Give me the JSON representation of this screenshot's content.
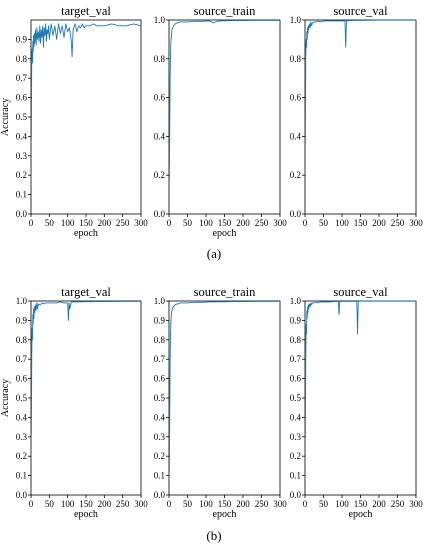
{
  "figure": {
    "rows": [
      {
        "caption": "(a)",
        "plots": [
          {
            "title": "target_val",
            "chart_data": {
              "type": "line",
              "title": "target_val",
              "xlabel": "epoch",
              "ylabel": "Accuracy",
              "xlim": [
                0,
                300
              ],
              "ylim": [
                0.0,
                1.0
              ],
              "xticks": [
                0,
                50,
                100,
                150,
                200,
                250,
                300
              ],
              "yticks": [
                0.0,
                0.1,
                0.2,
                0.3,
                0.4,
                0.5,
                0.6,
                0.7,
                0.8,
                0.9
              ],
              "ytick_labels": [
                "0.0",
                "0.1",
                "0.2",
                "0.3",
                "0.4",
                "0.5",
                "0.6",
                "0.7",
                "0.8",
                "0.9"
              ],
              "series": [
                {
                  "color": "#1f77b4",
                  "x": [
                    1,
                    2,
                    3,
                    4,
                    5,
                    6,
                    7,
                    8,
                    9,
                    10,
                    12,
                    14,
                    16,
                    18,
                    20,
                    22,
                    24,
                    26,
                    28,
                    30,
                    32,
                    34,
                    36,
                    38,
                    40,
                    42,
                    44,
                    46,
                    48,
                    50,
                    55,
                    60,
                    65,
                    70,
                    75,
                    80,
                    85,
                    90,
                    95,
                    100,
                    105,
                    110,
                    112,
                    115,
                    120,
                    125,
                    130,
                    135,
                    140,
                    145,
                    150,
                    160,
                    170,
                    180,
                    200,
                    220,
                    240,
                    260,
                    280,
                    300
                  ],
                  "y": [
                    0.39,
                    0.8,
                    0.85,
                    0.78,
                    0.89,
                    0.84,
                    0.92,
                    0.86,
                    0.93,
                    0.88,
                    0.95,
                    0.87,
                    0.96,
                    0.9,
                    0.94,
                    0.89,
                    0.97,
                    0.88,
                    0.95,
                    0.91,
                    0.97,
                    0.86,
                    0.96,
                    0.92,
                    0.98,
                    0.89,
                    0.95,
                    0.93,
                    0.97,
                    0.9,
                    0.98,
                    0.92,
                    0.97,
                    0.9,
                    0.98,
                    0.93,
                    0.97,
                    0.91,
                    0.98,
                    0.94,
                    0.96,
                    0.89,
                    0.81,
                    0.95,
                    0.98,
                    0.94,
                    0.97,
                    0.96,
                    0.98,
                    0.96,
                    0.97,
                    0.97,
                    0.98,
                    0.97,
                    0.97,
                    0.98,
                    0.97,
                    0.97,
                    0.98,
                    0.97
                  ]
                }
              ]
            }
          },
          {
            "title": "source_train",
            "chart_data": {
              "type": "line",
              "title": "source_train",
              "xlabel": "epoch",
              "ylabel": "",
              "xlim": [
                0,
                300
              ],
              "ylim": [
                0.0,
                1.0
              ],
              "xticks": [
                0,
                50,
                100,
                150,
                200,
                250,
                300
              ],
              "yticks": [
                0.0,
                0.2,
                0.4,
                0.6,
                0.8,
                1.0
              ],
              "ytick_labels": [
                "0.0",
                "0.2",
                "0.4",
                "0.6",
                "0.8",
                "1.0"
              ],
              "series": [
                {
                  "color": "#1f77b4",
                  "x": [
                    1,
                    2,
                    3,
                    4,
                    5,
                    6,
                    7,
                    8,
                    10,
                    12,
                    14,
                    16,
                    18,
                    20,
                    25,
                    30,
                    35,
                    40,
                    50,
                    60,
                    70,
                    80,
                    90,
                    100,
                    110,
                    120,
                    130,
                    140,
                    150,
                    175,
                    200,
                    250,
                    300
                  ],
                  "y": [
                    0.17,
                    0.45,
                    0.7,
                    0.82,
                    0.88,
                    0.91,
                    0.93,
                    0.95,
                    0.96,
                    0.97,
                    0.975,
                    0.98,
                    0.98,
                    0.985,
                    0.985,
                    0.99,
                    0.99,
                    0.99,
                    0.99,
                    0.992,
                    0.993,
                    0.993,
                    0.993,
                    0.994,
                    0.995,
                    0.985,
                    0.993,
                    0.995,
                    0.996,
                    0.997,
                    0.997,
                    0.998,
                    0.998
                  ]
                }
              ]
            }
          },
          {
            "title": "source_val",
            "chart_data": {
              "type": "line",
              "title": "source_val",
              "xlabel": "",
              "ylabel": "",
              "xlim": [
                0,
                300
              ],
              "ylim": [
                0.0,
                1.0
              ],
              "xticks": [
                0,
                50,
                100,
                150,
                200,
                250,
                300
              ],
              "yticks": [
                0.0,
                0.2,
                0.4,
                0.6,
                0.8,
                1.0
              ],
              "ytick_labels": [
                "0.0",
                "0.2",
                "0.4",
                "0.6",
                "0.8",
                "1.0"
              ],
              "series": [
                {
                  "color": "#1f77b4",
                  "x": [
                    1,
                    2,
                    3,
                    4,
                    5,
                    6,
                    7,
                    8,
                    9,
                    10,
                    12,
                    14,
                    16,
                    18,
                    20,
                    25,
                    30,
                    35,
                    40,
                    50,
                    60,
                    70,
                    80,
                    90,
                    100,
                    108,
                    110,
                    112,
                    115,
                    120,
                    140,
                    160,
                    200,
                    250,
                    300
                  ],
                  "y": [
                    0.36,
                    0.8,
                    0.9,
                    0.86,
                    0.94,
                    0.9,
                    0.96,
                    0.93,
                    0.97,
                    0.95,
                    0.98,
                    0.96,
                    0.99,
                    0.97,
                    0.985,
                    0.99,
                    0.99,
                    0.995,
                    0.99,
                    0.995,
                    0.995,
                    0.995,
                    0.995,
                    0.995,
                    0.995,
                    0.995,
                    0.86,
                    0.995,
                    0.995,
                    0.997,
                    0.998,
                    0.998,
                    0.999,
                    0.999,
                    0.999
                  ]
                }
              ]
            }
          }
        ]
      },
      {
        "caption": "(b)",
        "plots": [
          {
            "title": "target_val",
            "chart_data": {
              "type": "line",
              "title": "target_val",
              "xlabel": "epoch",
              "ylabel": "Accuracy",
              "xlim": [
                0,
                300
              ],
              "ylim": [
                0.0,
                1.0
              ],
              "xticks": [
                0,
                50,
                100,
                150,
                200,
                250,
                300
              ],
              "yticks": [
                0.0,
                0.1,
                0.2,
                0.3,
                0.4,
                0.5,
                0.6,
                0.7,
                0.8,
                0.9,
                1.0
              ],
              "ytick_labels": [
                "0.0",
                "0.1",
                "0.2",
                "0.3",
                "0.4",
                "0.5",
                "0.6",
                "0.7",
                "0.8",
                "0.9",
                "1.0"
              ],
              "series": [
                {
                  "color": "#1f77b4",
                  "x": [
                    1,
                    2,
                    3,
                    4,
                    5,
                    6,
                    7,
                    8,
                    9,
                    10,
                    12,
                    14,
                    16,
                    18,
                    20,
                    25,
                    30,
                    35,
                    40,
                    50,
                    60,
                    70,
                    80,
                    90,
                    100,
                    102,
                    104,
                    106,
                    110,
                    120,
                    140,
                    160,
                    200,
                    250,
                    300
                  ],
                  "y": [
                    0.31,
                    0.7,
                    0.86,
                    0.8,
                    0.93,
                    0.88,
                    0.96,
                    0.91,
                    0.97,
                    0.94,
                    0.98,
                    0.95,
                    0.99,
                    0.96,
                    0.985,
                    0.98,
                    0.99,
                    0.985,
                    0.99,
                    0.99,
                    0.99,
                    0.99,
                    0.995,
                    0.99,
                    0.99,
                    0.9,
                    0.99,
                    0.96,
                    0.995,
                    0.995,
                    0.996,
                    0.997,
                    0.997,
                    0.998,
                    0.998
                  ]
                }
              ]
            }
          },
          {
            "title": "source_train",
            "chart_data": {
              "type": "line",
              "title": "source_train",
              "xlabel": "epoch",
              "ylabel": "",
              "xlim": [
                0,
                300
              ],
              "ylim": [
                0.0,
                1.0
              ],
              "xticks": [
                0,
                50,
                100,
                150,
                200,
                250,
                300
              ],
              "yticks": [
                0.0,
                0.1,
                0.2,
                0.3,
                0.4,
                0.5,
                0.6,
                0.7,
                0.8,
                0.9,
                1.0
              ],
              "ytick_labels": [
                "0.0",
                "0.1",
                "0.2",
                "0.3",
                "0.4",
                "0.5",
                "0.6",
                "0.7",
                "0.8",
                "0.9",
                "1.0"
              ],
              "series": [
                {
                  "color": "#1f77b4",
                  "x": [
                    1,
                    2,
                    3,
                    4,
                    5,
                    6,
                    7,
                    8,
                    10,
                    12,
                    14,
                    16,
                    18,
                    20,
                    25,
                    30,
                    35,
                    40,
                    50,
                    60,
                    70,
                    80,
                    90,
                    100,
                    110,
                    120,
                    130,
                    140,
                    150,
                    175,
                    200,
                    250,
                    300
                  ],
                  "y": [
                    0.12,
                    0.42,
                    0.68,
                    0.82,
                    0.89,
                    0.92,
                    0.94,
                    0.95,
                    0.965,
                    0.97,
                    0.975,
                    0.98,
                    0.98,
                    0.985,
                    0.985,
                    0.99,
                    0.99,
                    0.99,
                    0.99,
                    0.992,
                    0.993,
                    0.993,
                    0.993,
                    0.994,
                    0.995,
                    0.995,
                    0.996,
                    0.996,
                    0.996,
                    0.997,
                    0.997,
                    0.998,
                    0.998
                  ]
                }
              ]
            }
          },
          {
            "title": "source_val",
            "chart_data": {
              "type": "line",
              "title": "source_val",
              "xlabel": "epoch",
              "ylabel": "",
              "xlim": [
                0,
                300
              ],
              "ylim": [
                0.0,
                1.0
              ],
              "xticks": [
                0,
                50,
                100,
                150,
                200,
                250,
                300
              ],
              "yticks": [
                0.0,
                0.1,
                0.2,
                0.3,
                0.4,
                0.5,
                0.6,
                0.7,
                0.8,
                0.9,
                1.0
              ],
              "ytick_labels": [
                "0.0",
                "0.1",
                "0.2",
                "0.3",
                "0.4",
                "0.5",
                "0.6",
                "0.7",
                "0.8",
                "0.9",
                "1.0"
              ],
              "series": [
                {
                  "color": "#1f77b4",
                  "x": [
                    1,
                    2,
                    3,
                    4,
                    5,
                    6,
                    7,
                    8,
                    9,
                    10,
                    12,
                    14,
                    16,
                    18,
                    20,
                    25,
                    30,
                    35,
                    40,
                    50,
                    60,
                    70,
                    80,
                    90,
                    92,
                    94,
                    100,
                    120,
                    140,
                    142,
                    144,
                    150,
                    160,
                    200,
                    250,
                    300
                  ],
                  "y": [
                    0.29,
                    0.7,
                    0.88,
                    0.83,
                    0.95,
                    0.91,
                    0.97,
                    0.94,
                    0.98,
                    0.96,
                    0.985,
                    0.97,
                    0.99,
                    0.98,
                    0.99,
                    0.99,
                    0.995,
                    0.99,
                    0.995,
                    0.995,
                    0.995,
                    0.995,
                    0.997,
                    0.997,
                    0.93,
                    0.997,
                    0.998,
                    0.998,
                    0.998,
                    0.83,
                    0.998,
                    0.999,
                    0.999,
                    0.999,
                    0.999,
                    0.999
                  ]
                }
              ]
            }
          }
        ]
      }
    ]
  }
}
